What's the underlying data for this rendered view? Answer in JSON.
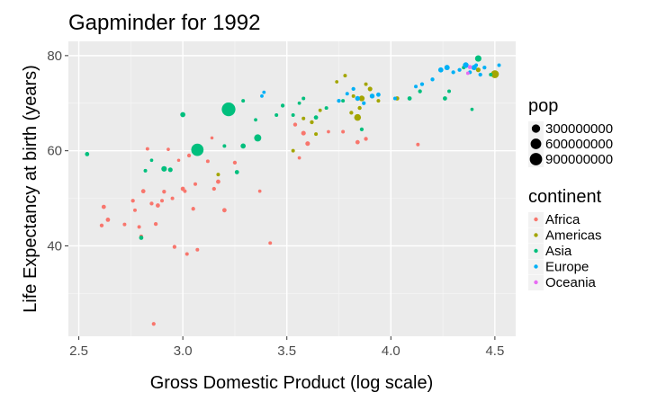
{
  "chart_data": {
    "type": "scatter",
    "title": "Gapminder for 1992",
    "xlabel": "Gross Domestic Product (log scale)",
    "ylabel": "Life Expectancy at birth (years)",
    "x_scale": "log10",
    "xlim": [
      2.45,
      4.6
    ],
    "ylim": [
      21,
      83
    ],
    "x_ticks": [
      "2.5",
      "3.0",
      "3.5",
      "4.0",
      "4.5"
    ],
    "x_tick_values": [
      2.5,
      3.0,
      3.5,
      4.0,
      4.5
    ],
    "y_ticks": [
      "40",
      "60",
      "80"
    ],
    "y_tick_values": [
      40,
      60,
      80
    ],
    "grid": true,
    "legend_position": "right",
    "size_legend": {
      "title": "pop",
      "entries": [
        {
          "label": "300000000",
          "value": 300000000
        },
        {
          "label": "600000000",
          "value": 600000000
        },
        {
          "label": "900000000",
          "value": 900000000
        }
      ]
    },
    "color_legend": {
      "title": "continent",
      "entries": [
        {
          "label": "Africa",
          "color": "#F8766D"
        },
        {
          "label": "Americas",
          "color": "#A3A500"
        },
        {
          "label": "Asia",
          "color": "#00BF7D"
        },
        {
          "label": "Europe",
          "color": "#00B0F6"
        },
        {
          "label": "Oceania",
          "color": "#E76BF3"
        }
      ]
    },
    "series": [
      {
        "name": "Africa",
        "points": [
          {
            "x": 2.61,
            "y": 44.3,
            "pop": 10000000
          },
          {
            "x": 2.62,
            "y": 48.2,
            "pop": 20000000
          },
          {
            "x": 2.64,
            "y": 45.5,
            "pop": 20000000
          },
          {
            "x": 2.72,
            "y": 44.5,
            "pop": 5000000
          },
          {
            "x": 2.76,
            "y": 49.5,
            "pop": 10000000
          },
          {
            "x": 2.77,
            "y": 47.5,
            "pop": 5000000
          },
          {
            "x": 2.79,
            "y": 44.0,
            "pop": 5000000
          },
          {
            "x": 2.8,
            "y": 42.0,
            "pop": 5000000
          },
          {
            "x": 2.81,
            "y": 51.5,
            "pop": 20000000
          },
          {
            "x": 2.83,
            "y": 60.4,
            "pop": 5000000
          },
          {
            "x": 2.85,
            "y": 48.9,
            "pop": 10000000
          },
          {
            "x": 2.86,
            "y": 23.6,
            "pop": 8000000
          },
          {
            "x": 2.87,
            "y": 44.6,
            "pop": 10000000
          },
          {
            "x": 2.88,
            "y": 48.5,
            "pop": 20000000
          },
          {
            "x": 2.9,
            "y": 49.5,
            "pop": 5000000
          },
          {
            "x": 2.91,
            "y": 51.4,
            "pop": 10000000
          },
          {
            "x": 2.93,
            "y": 60.3,
            "pop": 2000000
          },
          {
            "x": 2.95,
            "y": 50.0,
            "pop": 5000000
          },
          {
            "x": 2.96,
            "y": 39.8,
            "pop": 10000000
          },
          {
            "x": 2.98,
            "y": 58.0,
            "pop": 1000000
          },
          {
            "x": 3.0,
            "y": 52.0,
            "pop": 20000000
          },
          {
            "x": 3.01,
            "y": 51.5,
            "pop": 5000000
          },
          {
            "x": 3.02,
            "y": 38.3,
            "pop": 5000000
          },
          {
            "x": 3.03,
            "y": 59.0,
            "pop": 10000000
          },
          {
            "x": 3.05,
            "y": 47.8,
            "pop": 10000000
          },
          {
            "x": 3.06,
            "y": 53.0,
            "pop": 5000000
          },
          {
            "x": 3.07,
            "y": 39.2,
            "pop": 5000000
          },
          {
            "x": 3.12,
            "y": 57.8,
            "pop": 5000000
          },
          {
            "x": 3.14,
            "y": 62.7,
            "pop": 1000000
          },
          {
            "x": 3.15,
            "y": 52.0,
            "pop": 10000000
          },
          {
            "x": 3.17,
            "y": 53.5,
            "pop": 20000000
          },
          {
            "x": 3.2,
            "y": 47.5,
            "pop": 20000000
          },
          {
            "x": 3.25,
            "y": 57.5,
            "pop": 10000000
          },
          {
            "x": 3.37,
            "y": 51.5,
            "pop": 2000000
          },
          {
            "x": 3.42,
            "y": 40.6,
            "pop": 5000000
          },
          {
            "x": 3.56,
            "y": 58.5,
            "pop": 2000000
          },
          {
            "x": 3.58,
            "y": 63.7,
            "pop": 30000000
          },
          {
            "x": 3.6,
            "y": 61.5,
            "pop": 30000000
          },
          {
            "x": 3.54,
            "y": 65.5,
            "pop": 10000000
          },
          {
            "x": 3.7,
            "y": 64.0,
            "pop": 2000000
          },
          {
            "x": 3.77,
            "y": 64.0,
            "pop": 5000000
          },
          {
            "x": 3.84,
            "y": 61.8,
            "pop": 20000000
          },
          {
            "x": 3.88,
            "y": 62.5,
            "pop": 10000000
          },
          {
            "x": 4.13,
            "y": 61.3,
            "pop": 5000000
          }
        ]
      },
      {
        "name": "Americas",
        "points": [
          {
            "x": 3.17,
            "y": 55.0,
            "pop": 5000000
          },
          {
            "x": 3.53,
            "y": 60.0,
            "pop": 5000000
          },
          {
            "x": 3.58,
            "y": 66.8,
            "pop": 5000000
          },
          {
            "x": 3.62,
            "y": 66.0,
            "pop": 10000000
          },
          {
            "x": 3.64,
            "y": 63.5,
            "pop": 5000000
          },
          {
            "x": 3.66,
            "y": 68.5,
            "pop": 3000000
          },
          {
            "x": 3.74,
            "y": 74.5,
            "pop": 3000000
          },
          {
            "x": 3.78,
            "y": 75.8,
            "pop": 5000000
          },
          {
            "x": 3.81,
            "y": 68.0,
            "pop": 10000000
          },
          {
            "x": 3.82,
            "y": 71.5,
            "pop": 5000000
          },
          {
            "x": 3.84,
            "y": 67.0,
            "pop": 150000000
          },
          {
            "x": 3.85,
            "y": 69.0,
            "pop": 10000000
          },
          {
            "x": 3.86,
            "y": 71.0,
            "pop": 80000000
          },
          {
            "x": 3.88,
            "y": 74.0,
            "pop": 5000000
          },
          {
            "x": 3.9,
            "y": 73.0,
            "pop": 30000000
          },
          {
            "x": 3.94,
            "y": 70.5,
            "pop": 5000000
          },
          {
            "x": 4.03,
            "y": 71.0,
            "pop": 20000000
          },
          {
            "x": 4.42,
            "y": 77.0,
            "pop": 30000000
          },
          {
            "x": 4.5,
            "y": 76.1,
            "pop": 260000000
          }
        ]
      },
      {
        "name": "Asia",
        "points": [
          {
            "x": 2.54,
            "y": 59.3,
            "pop": 20000000
          },
          {
            "x": 2.8,
            "y": 41.7,
            "pop": 20000000
          },
          {
            "x": 2.82,
            "y": 55.8,
            "pop": 5000000
          },
          {
            "x": 2.85,
            "y": 58.0,
            "pop": 2000000
          },
          {
            "x": 2.91,
            "y": 56.2,
            "pop": 70000000
          },
          {
            "x": 2.94,
            "y": 56.0,
            "pop": 30000000
          },
          {
            "x": 3.0,
            "y": 67.6,
            "pop": 50000000
          },
          {
            "x": 3.07,
            "y": 60.2,
            "pop": 890000000
          },
          {
            "x": 3.2,
            "y": 61.0,
            "pop": 5000000
          },
          {
            "x": 3.22,
            "y": 68.7,
            "pop": 1160000000
          },
          {
            "x": 3.26,
            "y": 55.5,
            "pop": 20000000
          },
          {
            "x": 3.29,
            "y": 61.0,
            "pop": 50000000
          },
          {
            "x": 3.29,
            "y": 70.5,
            "pop": 5000000
          },
          {
            "x": 3.36,
            "y": 62.7,
            "pop": 180000000
          },
          {
            "x": 3.35,
            "y": 66.5,
            "pop": 3000000
          },
          {
            "x": 3.45,
            "y": 67.5,
            "pop": 5000000
          },
          {
            "x": 3.48,
            "y": 69.5,
            "pop": 10000000
          },
          {
            "x": 3.53,
            "y": 67.5,
            "pop": 5000000
          },
          {
            "x": 3.56,
            "y": 70.0,
            "pop": 3000000
          },
          {
            "x": 3.58,
            "y": 71.0,
            "pop": 5000000
          },
          {
            "x": 3.64,
            "y": 67.0,
            "pop": 20000000
          },
          {
            "x": 3.69,
            "y": 69.0,
            "pop": 5000000
          },
          {
            "x": 3.77,
            "y": 70.5,
            "pop": 5000000
          },
          {
            "x": 3.86,
            "y": 64.5,
            "pop": 10000000
          },
          {
            "x": 4.09,
            "y": 71.0,
            "pop": 20000000
          },
          {
            "x": 4.14,
            "y": 72.5,
            "pop": 10000000
          },
          {
            "x": 4.26,
            "y": 71.0,
            "pop": 20000000
          },
          {
            "x": 4.28,
            "y": 72.5,
            "pop": 5000000
          },
          {
            "x": 4.39,
            "y": 68.7,
            "pop": 2000000
          },
          {
            "x": 4.42,
            "y": 79.4,
            "pop": 125000000
          },
          {
            "x": 4.35,
            "y": 77.5,
            "pop": 5000000
          },
          {
            "x": 4.48,
            "y": 76.0,
            "pop": 5000000
          }
        ]
      },
      {
        "name": "Europe",
        "points": [
          {
            "x": 3.38,
            "y": 71.5,
            "pop": 3000000
          },
          {
            "x": 3.39,
            "y": 72.3,
            "pop": 3000000
          },
          {
            "x": 3.75,
            "y": 70.5,
            "pop": 10000000
          },
          {
            "x": 3.79,
            "y": 72.0,
            "pop": 5000000
          },
          {
            "x": 3.82,
            "y": 73.0,
            "pop": 10000000
          },
          {
            "x": 3.84,
            "y": 71.0,
            "pop": 40000000
          },
          {
            "x": 3.87,
            "y": 70.0,
            "pop": 10000000
          },
          {
            "x": 3.91,
            "y": 71.5,
            "pop": 40000000
          },
          {
            "x": 3.94,
            "y": 71.8,
            "pop": 20000000
          },
          {
            "x": 4.02,
            "y": 71.0,
            "pop": 5000000
          },
          {
            "x": 4.12,
            "y": 73.5,
            "pop": 5000000
          },
          {
            "x": 4.15,
            "y": 74.0,
            "pop": 10000000
          },
          {
            "x": 4.2,
            "y": 75.0,
            "pop": 10000000
          },
          {
            "x": 4.24,
            "y": 77.0,
            "pop": 50000000
          },
          {
            "x": 4.27,
            "y": 77.5,
            "pop": 60000000
          },
          {
            "x": 4.3,
            "y": 76.5,
            "pop": 10000000
          },
          {
            "x": 4.33,
            "y": 77.0,
            "pop": 10000000
          },
          {
            "x": 4.36,
            "y": 78.0,
            "pop": 80000000
          },
          {
            "x": 4.38,
            "y": 76.5,
            "pop": 10000000
          },
          {
            "x": 4.4,
            "y": 77.5,
            "pop": 60000000
          },
          {
            "x": 4.41,
            "y": 78.0,
            "pop": 5000000
          },
          {
            "x": 4.43,
            "y": 76.0,
            "pop": 10000000
          },
          {
            "x": 4.45,
            "y": 77.5,
            "pop": 10000000
          },
          {
            "x": 4.52,
            "y": 78.0,
            "pop": 5000000
          }
        ]
      },
      {
        "name": "Oceania",
        "points": [
          {
            "x": 4.37,
            "y": 76.3,
            "pop": 3000000
          },
          {
            "x": 4.38,
            "y": 77.6,
            "pop": 17000000
          }
        ]
      }
    ]
  }
}
